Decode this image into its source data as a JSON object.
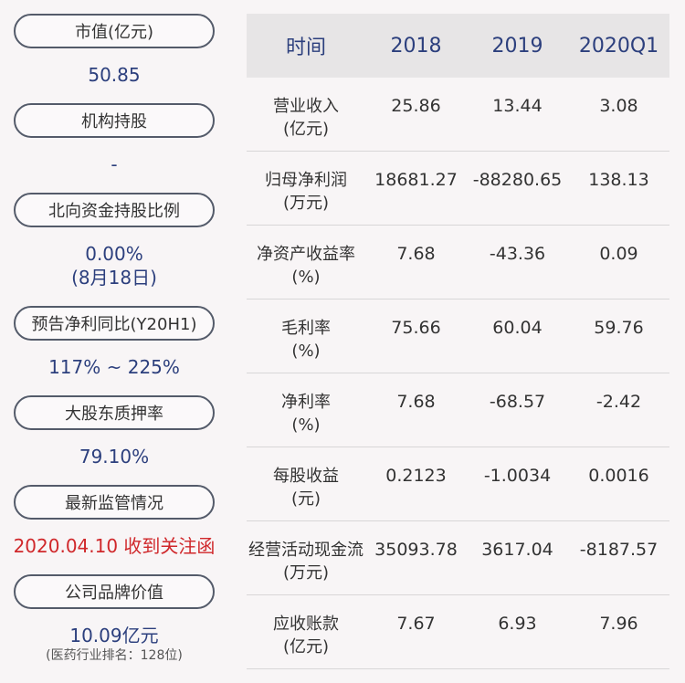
{
  "left_panel": {
    "items": [
      {
        "label": "市值(亿元)",
        "value": "50.85"
      },
      {
        "label": "机构持股",
        "value": "-"
      },
      {
        "label": "北向资金持股比例",
        "value": "0.00%",
        "value2": "(8月18日)"
      },
      {
        "label": "预告净利同比(Y20H1)",
        "value": "117% ~ 225%"
      },
      {
        "label": "大股东质押率",
        "value": "79.10%"
      },
      {
        "label": "最新监管情况",
        "value": "2020.04.10 收到关注函"
      },
      {
        "label": "公司品牌价值",
        "value": "10.09亿元",
        "note": "(医药行业排名：128位)"
      }
    ]
  },
  "table": {
    "headers": [
      "时间",
      "2018",
      "2019",
      "2020Q1"
    ],
    "rows": [
      {
        "label": "营业收入",
        "unit": "(亿元)",
        "values": [
          "25.86",
          "13.44",
          "3.08"
        ]
      },
      {
        "label": "归母净利润",
        "unit": "(万元)",
        "values": [
          "18681.27",
          "-88280.65",
          "138.13"
        ]
      },
      {
        "label": "净资产收益率",
        "unit": "(%)",
        "values": [
          "7.68",
          "-43.36",
          "0.09"
        ]
      },
      {
        "label": "毛利率",
        "unit": "(%)",
        "values": [
          "75.66",
          "60.04",
          "59.76"
        ]
      },
      {
        "label": "净利率",
        "unit": "(%)",
        "values": [
          "7.68",
          "-68.57",
          "-2.42"
        ]
      },
      {
        "label": "每股收益",
        "unit": "(元)",
        "values": [
          "0.2123",
          "-1.0034",
          "0.0016"
        ]
      },
      {
        "label": "经营活动现金流",
        "unit": "(万元)",
        "values": [
          "35093.78",
          "3617.04",
          "-8187.57"
        ]
      },
      {
        "label": "应收账款",
        "unit": "(亿元)",
        "values": [
          "7.67",
          "6.93",
          "7.96"
        ]
      }
    ]
  },
  "colors": {
    "accent": "#2c3f7d",
    "alert": "#d0282b",
    "header_bg": "#e7e5e6",
    "pill_border": "#545b6a"
  }
}
